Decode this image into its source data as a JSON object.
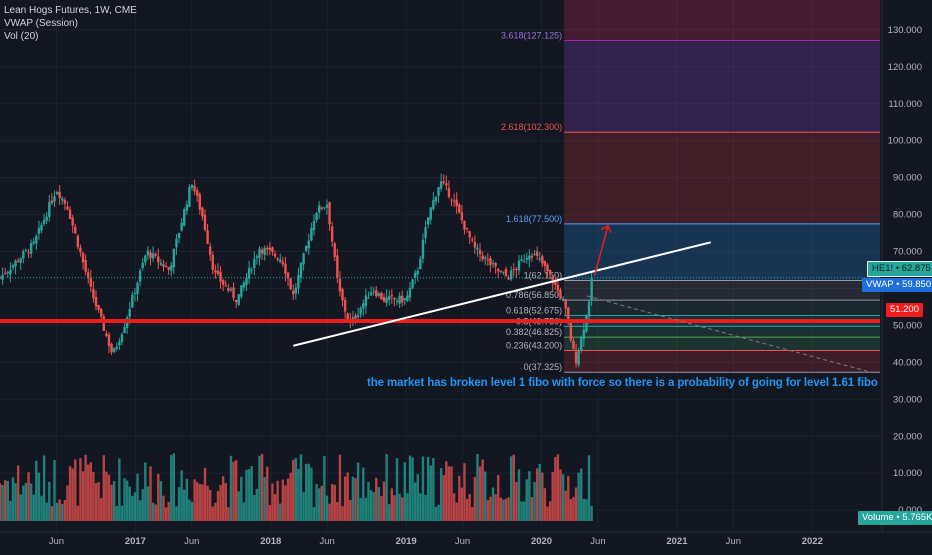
{
  "legend": {
    "symbol": "Lean Hogs Futures, 1W, CME",
    "vwap": "VWAP (Session)",
    "vol": "Vol (20)"
  },
  "annotation": "the market has broken level 1 fibo with force so there is a probability of going for level 1.61 fibo",
  "price_tags": {
    "he": "HE1! • 62.875",
    "vwap": "VWAP • 59.850",
    "red_line": "51.200",
    "volume": "Volume • 5.765K"
  },
  "colors": {
    "up": "#26a69a",
    "down": "#ef5350",
    "red_line": "#f21b1b",
    "fib_label_blue": "#5b9cf5",
    "annotation": "#2196f3"
  },
  "chart_data": {
    "type": "candlestick",
    "title": "Lean Hogs Futures, 1W, CME",
    "y_axis": {
      "ticks": [
        "130.000",
        "120.000",
        "110.000",
        "100.000",
        "90.000",
        "80.000",
        "70.000",
        "60.000",
        "50.000",
        "40.000",
        "30.000",
        "20.000",
        "10.000",
        "0.000"
      ],
      "range": [
        -7,
        137
      ]
    },
    "x_axis": {
      "ticks": [
        "Jun",
        "2017",
        "Jun",
        "2018",
        "Jun",
        "2019",
        "Jun",
        "2020",
        "Jun",
        "2021",
        "Jun",
        "2022"
      ],
      "range": [
        "2016-01",
        "2022-07"
      ]
    },
    "price_anchors": [
      {
        "date": "2016-01",
        "price": 63
      },
      {
        "date": "2016-04",
        "price": 72
      },
      {
        "date": "2016-06",
        "price": 87
      },
      {
        "date": "2016-07",
        "price": 82
      },
      {
        "date": "2016-09",
        "price": 60
      },
      {
        "date": "2016-11",
        "price": 42
      },
      {
        "date": "2016-12",
        "price": 50
      },
      {
        "date": "2017-02",
        "price": 70
      },
      {
        "date": "2017-04",
        "price": 65
      },
      {
        "date": "2017-06",
        "price": 89
      },
      {
        "date": "2017-07",
        "price": 79
      },
      {
        "date": "2017-08",
        "price": 64
      },
      {
        "date": "2017-10",
        "price": 57
      },
      {
        "date": "2017-12",
        "price": 71
      },
      {
        "date": "2018-02",
        "price": 68
      },
      {
        "date": "2018-03",
        "price": 58
      },
      {
        "date": "2018-05",
        "price": 81
      },
      {
        "date": "2018-06",
        "price": 83
      },
      {
        "date": "2018-07",
        "price": 60
      },
      {
        "date": "2018-08",
        "price": 50
      },
      {
        "date": "2018-10",
        "price": 60
      },
      {
        "date": "2018-11",
        "price": 57
      },
      {
        "date": "2019-01",
        "price": 57
      },
      {
        "date": "2019-02",
        "price": 65
      },
      {
        "date": "2019-03",
        "price": 80
      },
      {
        "date": "2019-04",
        "price": 89
      },
      {
        "date": "2019-05",
        "price": 85
      },
      {
        "date": "2019-06",
        "price": 78
      },
      {
        "date": "2019-07",
        "price": 71
      },
      {
        "date": "2019-09",
        "price": 65
      },
      {
        "date": "2019-10",
        "price": 63
      },
      {
        "date": "2019-12",
        "price": 70
      },
      {
        "date": "2020-01",
        "price": 67
      },
      {
        "date": "2020-02",
        "price": 62
      },
      {
        "date": "2020-03",
        "price": 56
      },
      {
        "date": "2020-04",
        "price": 40
      },
      {
        "date": "2020-05",
        "price": 53
      },
      {
        "date": "2020-05",
        "price": 62.9
      }
    ],
    "vwap_last": 59.85,
    "horizontal_level": 51.2,
    "fibonacci": {
      "start": "2020-03",
      "end": "2022-07",
      "levels": [
        {
          "ratio": "0",
          "price": 37.325,
          "label": "0(37.325)"
        },
        {
          "ratio": "0.236",
          "price": 43.2,
          "label": "0.236(43.200)"
        },
        {
          "ratio": "0.382",
          "price": 46.825,
          "label": "0.382(46.825)"
        },
        {
          "ratio": "0.5",
          "price": 49.75,
          "label": "0.5(49.750)"
        },
        {
          "ratio": "0.618",
          "price": 52.675,
          "label": "0.618(52.675)"
        },
        {
          "ratio": "0.786",
          "price": 56.85,
          "label": "0.786(56.850)"
        },
        {
          "ratio": "1",
          "price": 62.15,
          "label": "1(62.150)"
        },
        {
          "ratio": "1.618",
          "price": 77.5,
          "label": "1.618(77.500)"
        },
        {
          "ratio": "2.618",
          "price": 102.3,
          "label": "2.618(102.300)"
        },
        {
          "ratio": "3.618",
          "price": 127.125,
          "label": "3.618(127.125)"
        }
      ]
    },
    "trendlines": [
      {
        "name": "white-support",
        "from": {
          "date": "2018-03",
          "price": 44.5
        },
        "to": {
          "date": "2021-04",
          "price": 72.5
        }
      },
      {
        "name": "dashed-projection",
        "from": {
          "date": "2020-05",
          "price": 58
        },
        "to": {
          "date": "2022-06",
          "price": 37.5
        }
      }
    ],
    "volume": {
      "ticks": [
        "20.000",
        "10.000",
        "0.000"
      ],
      "last": "5.765K"
    }
  }
}
